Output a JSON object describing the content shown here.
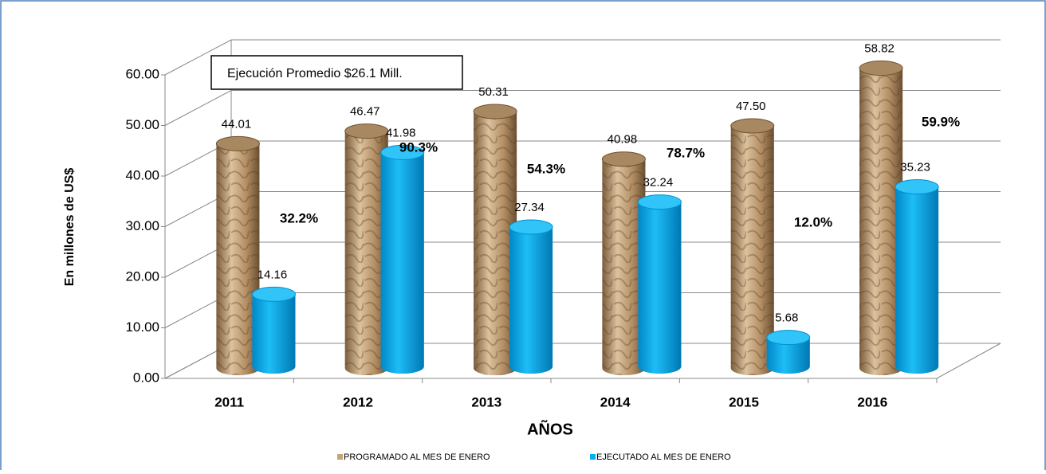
{
  "chart_data": {
    "type": "bar",
    "annotation": "Ejecución Promedio $26.1 Mill.",
    "y_label": "En millones de US$",
    "x_label": "AÑOS",
    "categories": [
      "2011",
      "2012",
      "2013",
      "2014",
      "2015",
      "2016"
    ],
    "series": [
      {
        "name": "PROGRAMADO AL MES DE ENERO",
        "color": "#c4a27a",
        "values": [
          44.01,
          46.47,
          50.31,
          40.98,
          47.5,
          58.82
        ],
        "value_labels": [
          "44.01",
          "46.47",
          "50.31",
          "40.98",
          "47.50",
          "58.82"
        ]
      },
      {
        "name": "EJECUTADO AL MES DE ENERO",
        "color": "#00b0f0",
        "values": [
          14.16,
          41.98,
          27.34,
          32.24,
          5.68,
          35.23
        ],
        "value_labels": [
          "14.16",
          "41.98",
          "27.34",
          "32.24",
          "5.68",
          "35.23"
        ]
      }
    ],
    "ratio_labels": [
      "32.2%",
      "90.3%",
      "54.3%",
      "78.7%",
      "12.0%",
      "59.9%"
    ],
    "ylim": [
      0,
      60
    ],
    "yticks": [
      {
        "value": 0,
        "label": "0.00"
      },
      {
        "value": 10,
        "label": "10.00"
      },
      {
        "value": 20,
        "label": "20.00"
      },
      {
        "value": 30,
        "label": "30.00"
      },
      {
        "value": 40,
        "label": "40.00"
      },
      {
        "value": 50,
        "label": "50.00"
      },
      {
        "value": 60,
        "label": "60.00"
      }
    ],
    "grid": true
  }
}
